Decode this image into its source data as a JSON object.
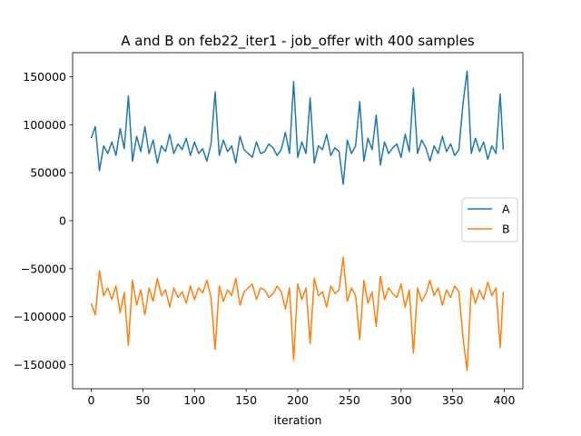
{
  "chart_data": {
    "type": "line",
    "title": "A and B on feb22_iter1 - job_offer with 400 samples",
    "xlabel": "iteration",
    "ylabel": "",
    "xlim": [
      -18,
      418
    ],
    "ylim": [
      -175000,
      175000
    ],
    "x_ticks": [
      0,
      50,
      100,
      150,
      200,
      250,
      300,
      350,
      400
    ],
    "x_tick_labels": [
      "0",
      "50",
      "100",
      "150",
      "200",
      "250",
      "300",
      "350",
      "400"
    ],
    "y_ticks": [
      150000,
      100000,
      50000,
      0,
      -50000,
      -100000,
      -150000
    ],
    "y_tick_labels": [
      "150000",
      "100000",
      "50000",
      "0",
      "−50000",
      "−100000",
      "−150000"
    ],
    "grid": false,
    "legend_position": "center right",
    "x": [
      0,
      4,
      8,
      12,
      16,
      20,
      24,
      28,
      32,
      36,
      40,
      44,
      48,
      52,
      56,
      60,
      64,
      68,
      72,
      76,
      80,
      84,
      88,
      92,
      96,
      100,
      104,
      108,
      112,
      116,
      120,
      124,
      128,
      132,
      136,
      140,
      144,
      148,
      152,
      156,
      160,
      164,
      168,
      172,
      176,
      180,
      184,
      188,
      192,
      196,
      200,
      204,
      208,
      212,
      216,
      220,
      224,
      228,
      232,
      236,
      240,
      244,
      248,
      252,
      256,
      260,
      264,
      268,
      272,
      276,
      280,
      284,
      288,
      292,
      296,
      300,
      304,
      308,
      312,
      316,
      320,
      324,
      328,
      332,
      336,
      340,
      344,
      348,
      352,
      356,
      360,
      364,
      368,
      372,
      376,
      380,
      384,
      388,
      392,
      396,
      399
    ],
    "series": [
      {
        "name": "A",
        "color": "#1f77b4",
        "values": [
          86000,
          98000,
          52000,
          78000,
          70000,
          82000,
          68000,
          96000,
          75000,
          130000,
          62000,
          88000,
          72000,
          98000,
          70000,
          84000,
          60000,
          78000,
          72000,
          90000,
          70000,
          80000,
          74000,
          86000,
          68000,
          82000,
          70000,
          75000,
          62000,
          80000,
          134000,
          68000,
          84000,
          72000,
          78000,
          60000,
          88000,
          74000,
          70000,
          66000,
          82000,
          70000,
          72000,
          80000,
          76000,
          68000,
          74000,
          92000,
          70000,
          145000,
          66000,
          82000,
          70000,
          128000,
          60000,
          78000,
          74000,
          90000,
          68000,
          76000,
          72000,
          38000,
          84000,
          70000,
          78000,
          124000,
          62000,
          86000,
          74000,
          110000,
          58000,
          82000,
          70000,
          76000,
          80000,
          66000,
          90000,
          72000,
          138000,
          70000,
          84000,
          76000,
          62000,
          78000,
          70000,
          88000,
          72000,
          80000,
          68000,
          74000,
          122000,
          156000,
          70000,
          86000,
          72000,
          82000,
          64000,
          78000,
          70000,
          132000,
          74000
        ]
      },
      {
        "name": "B",
        "color": "#ff7f0e",
        "values": [
          -86000,
          -98000,
          -52000,
          -78000,
          -70000,
          -82000,
          -68000,
          -96000,
          -75000,
          -130000,
          -62000,
          -88000,
          -72000,
          -98000,
          -70000,
          -84000,
          -60000,
          -78000,
          -72000,
          -90000,
          -70000,
          -80000,
          -74000,
          -86000,
          -68000,
          -82000,
          -70000,
          -75000,
          -62000,
          -80000,
          -134000,
          -68000,
          -84000,
          -72000,
          -78000,
          -60000,
          -88000,
          -74000,
          -70000,
          -66000,
          -82000,
          -70000,
          -72000,
          -80000,
          -76000,
          -68000,
          -74000,
          -92000,
          -70000,
          -145000,
          -66000,
          -82000,
          -70000,
          -128000,
          -60000,
          -78000,
          -74000,
          -90000,
          -68000,
          -76000,
          -72000,
          -38000,
          -84000,
          -70000,
          -78000,
          -124000,
          -62000,
          -86000,
          -74000,
          -110000,
          -58000,
          -82000,
          -70000,
          -76000,
          -80000,
          -66000,
          -90000,
          -72000,
          -138000,
          -70000,
          -84000,
          -76000,
          -62000,
          -78000,
          -70000,
          -88000,
          -72000,
          -80000,
          -68000,
          -74000,
          -122000,
          -156000,
          -70000,
          -86000,
          -72000,
          -82000,
          -64000,
          -78000,
          -70000,
          -132000,
          -74000
        ]
      }
    ]
  }
}
